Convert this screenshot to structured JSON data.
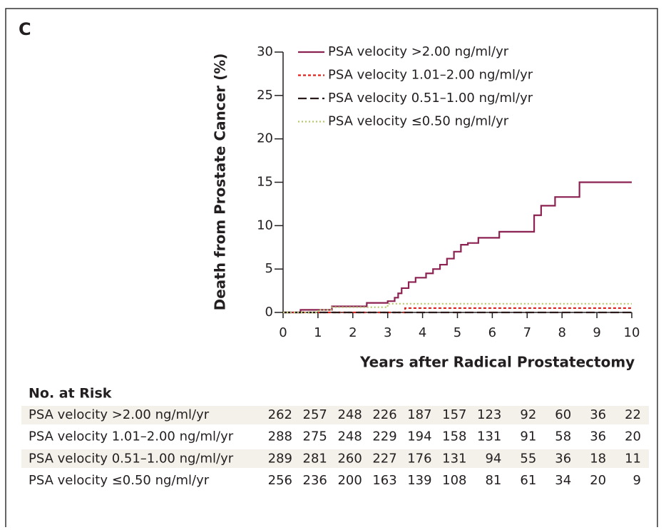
{
  "panel_label": "C",
  "chart_data": {
    "type": "line",
    "step": "post",
    "xlabel": "Years after Radical Prostatectomy",
    "ylabel": "Death from Prostate Cancer (%)",
    "xlim": [
      0,
      10
    ],
    "xticks": [
      0,
      1,
      2,
      3,
      4,
      5,
      6,
      7,
      8,
      9,
      10
    ],
    "ylim": [
      0,
      30
    ],
    "yticks": [
      0,
      5,
      10,
      15,
      20,
      25,
      30
    ],
    "series": [
      {
        "name": "PSA velocity >2.00 ng/ml/yr",
        "color": "#8b2252",
        "dash": "solid",
        "x": [
          0,
          0.5,
          1.4,
          2.4,
          3.0,
          3.2,
          3.3,
          3.4,
          3.6,
          3.8,
          4.1,
          4.3,
          4.5,
          4.7,
          4.9,
          5.1,
          5.3,
          5.6,
          6.2,
          7.2,
          7.4,
          7.8,
          8.5,
          10
        ],
        "values": [
          0,
          0.3,
          0.7,
          1.1,
          1.3,
          1.7,
          2.2,
          2.8,
          3.5,
          4.0,
          4.5,
          5.0,
          5.5,
          6.2,
          7.0,
          7.8,
          8.0,
          8.6,
          9.3,
          11.2,
          12.3,
          13.3,
          15.0,
          15.0
        ]
      },
      {
        "name": "PSA velocity 1.01–2.00 ng/ml/yr",
        "color": "#e0201b",
        "dash": "dashed",
        "x": [
          0,
          3.5,
          10
        ],
        "values": [
          0,
          0.5,
          0.5
        ]
      },
      {
        "name": "PSA velocity 0.51–1.00 ng/ml/yr",
        "color": "#2a1a1a",
        "dash": "longdash",
        "x": [
          0,
          10
        ],
        "values": [
          0,
          0
        ]
      },
      {
        "name": "PSA velocity ≤0.50 ng/ml/yr",
        "color": "#b5c96a",
        "dash": "dotted",
        "x": [
          0,
          1.0,
          1.4,
          3.0,
          10
        ],
        "values": [
          0,
          0.3,
          0.6,
          1.0,
          1.0
        ]
      }
    ]
  },
  "risk_table": {
    "title": "No. at Risk",
    "rows": [
      {
        "label": "PSA velocity >2.00 ng/ml/yr",
        "values": [
          262,
          257,
          248,
          226,
          187,
          157,
          123,
          92,
          60,
          36,
          22
        ]
      },
      {
        "label": "PSA velocity 1.01–2.00 ng/ml/yr",
        "values": [
          288,
          275,
          248,
          229,
          194,
          158,
          131,
          91,
          58,
          36,
          20
        ]
      },
      {
        "label": "PSA velocity 0.51–1.00 ng/ml/yr",
        "values": [
          289,
          281,
          260,
          227,
          176,
          131,
          94,
          55,
          36,
          18,
          11
        ]
      },
      {
        "label": "PSA velocity ≤0.50 ng/ml/yr",
        "values": [
          256,
          236,
          200,
          163,
          139,
          108,
          81,
          61,
          34,
          20,
          9
        ]
      }
    ]
  }
}
